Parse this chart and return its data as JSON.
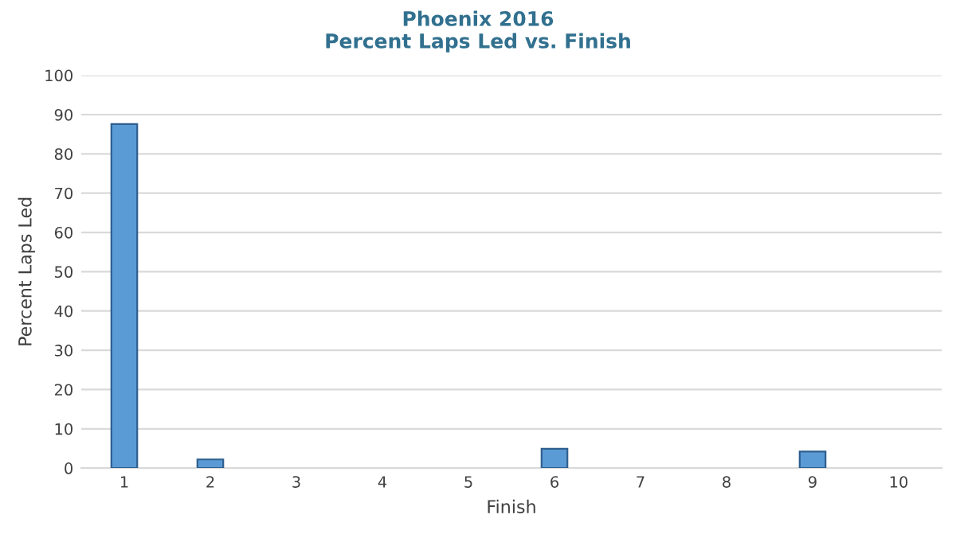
{
  "chart_data": {
    "type": "bar",
    "title": "Phoenix 2016\nPercent Laps Led vs. Finish",
    "xlabel": "Finish",
    "ylabel": "Percent Laps Led",
    "categories": [
      "1",
      "2",
      "3",
      "4",
      "5",
      "6",
      "7",
      "8",
      "9",
      "10"
    ],
    "values": [
      87.6,
      2.2,
      0,
      0,
      0,
      4.9,
      0,
      0,
      4.2,
      0
    ],
    "color": "#5b9bd5",
    "ylim": [
      0,
      100
    ],
    "yticks": [
      0,
      10,
      20,
      30,
      40,
      50,
      60,
      70,
      80,
      90,
      100
    ],
    "grid": "y"
  }
}
